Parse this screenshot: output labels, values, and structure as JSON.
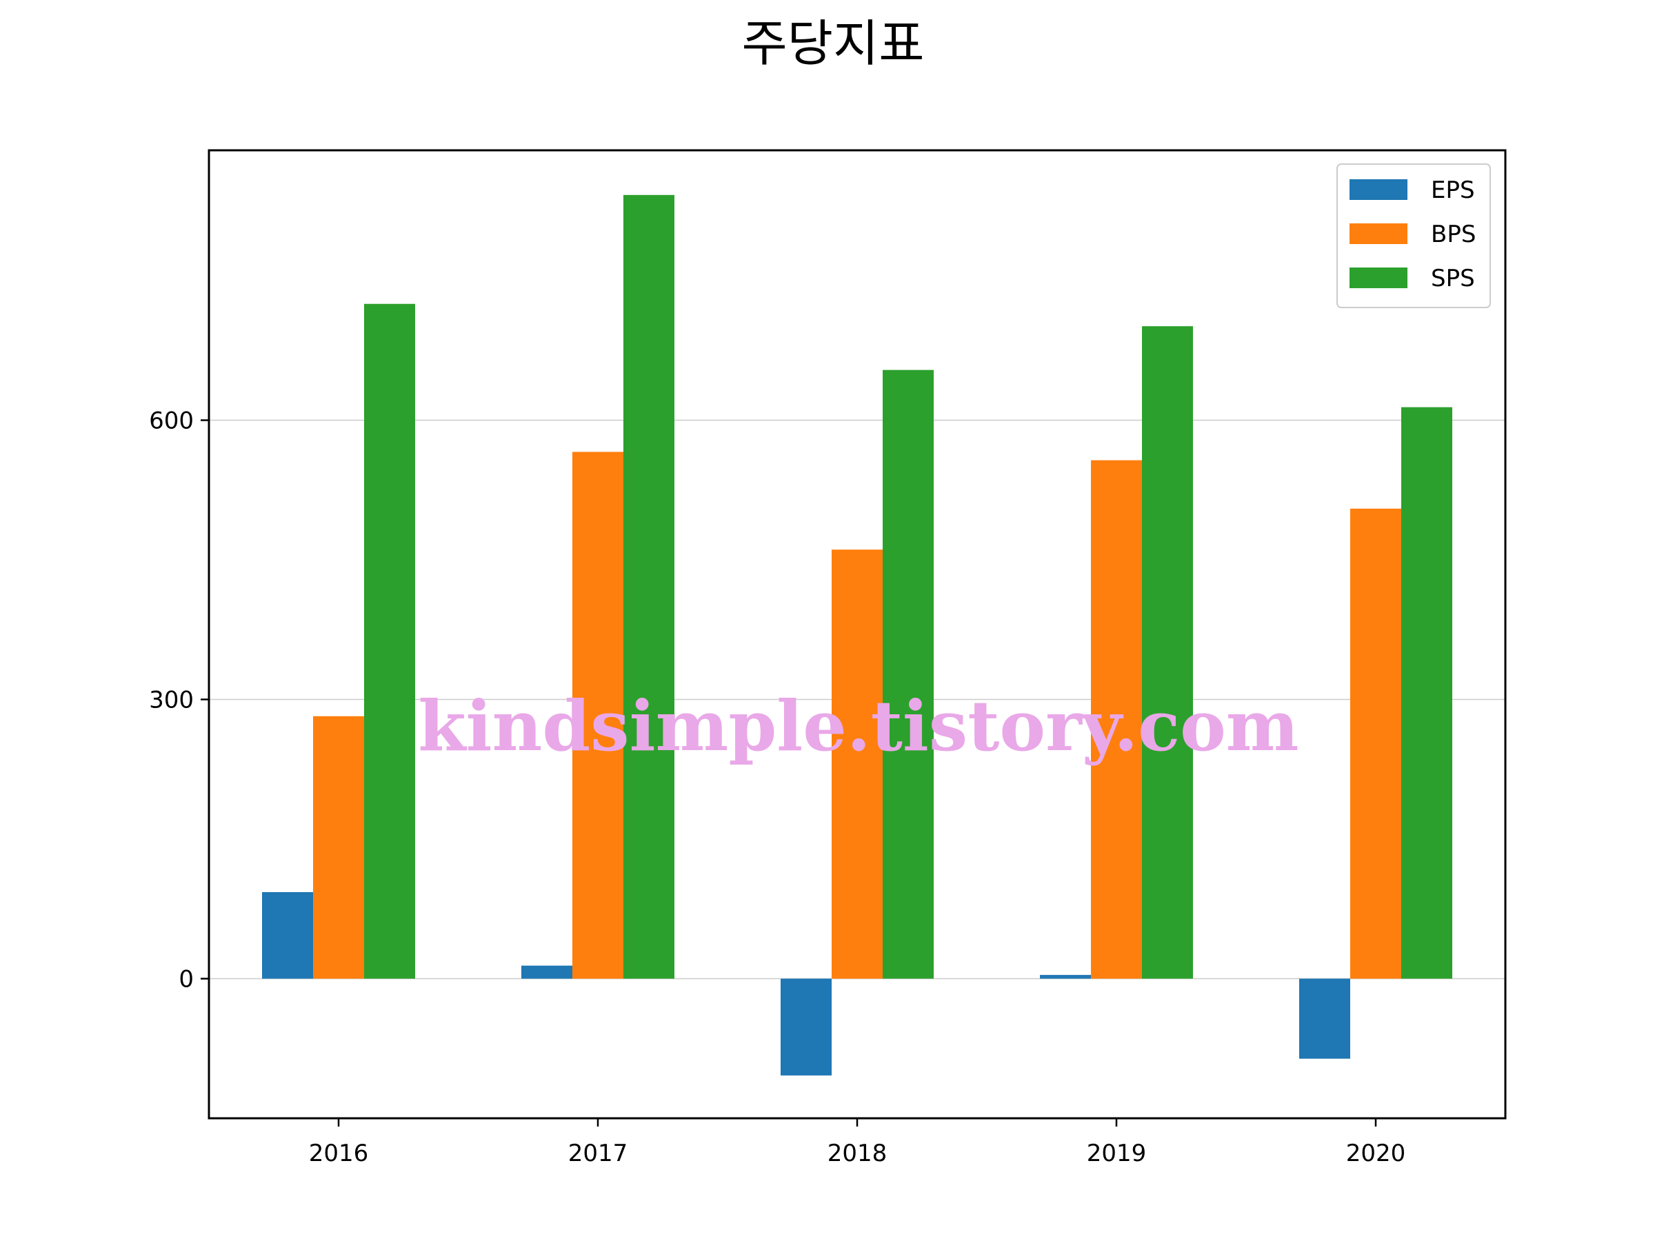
{
  "chart_data": {
    "type": "bar",
    "title": "주당지표",
    "xlabel": "",
    "ylabel": "",
    "categories": [
      "2016",
      "2017",
      "2018",
      "2019",
      "2020"
    ],
    "series": [
      {
        "name": "EPS",
        "values": [
          93,
          14,
          -104,
          4,
          -86
        ],
        "color": "#1f77b4"
      },
      {
        "name": "BPS",
        "values": [
          282,
          566,
          461,
          557,
          505
        ],
        "color": "#ff7f0e"
      },
      {
        "name": "SPS",
        "values": [
          725,
          842,
          654,
          701,
          614
        ],
        "color": "#2ca02c"
      }
    ],
    "ylim": [
      -150,
      890
    ],
    "yticks": [
      0,
      300,
      600
    ],
    "grid": "y",
    "legend": "top-right"
  },
  "watermark": "kindsimple.tistory.com"
}
